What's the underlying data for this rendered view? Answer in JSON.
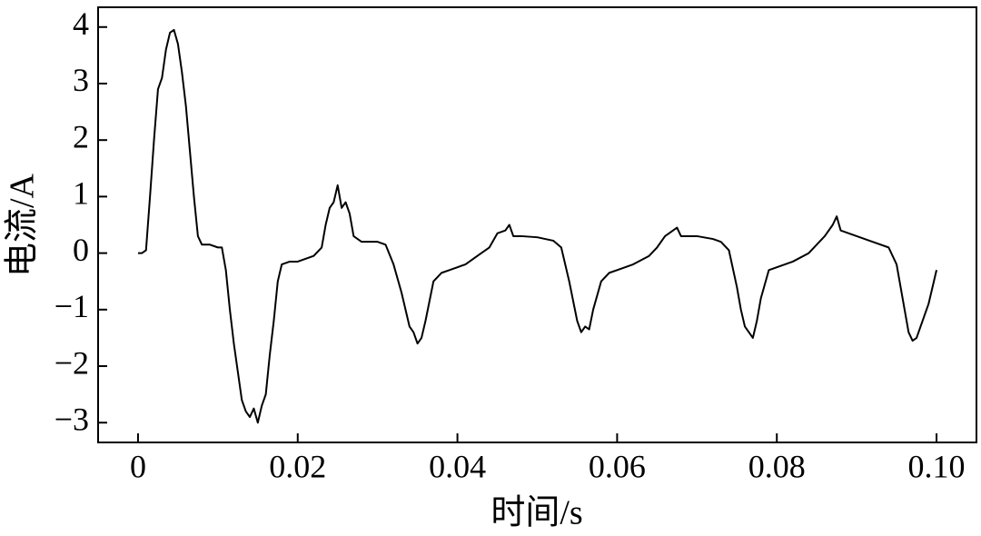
{
  "chart_data": {
    "type": "line",
    "xlabel": "时间/s",
    "ylabel": "电流/A",
    "xlim": [
      -0.005,
      0.105
    ],
    "ylim": [
      -3.35,
      4.35
    ],
    "xticks": [
      0,
      0.02,
      0.04,
      0.06,
      0.08,
      {
        "value": 0.1,
        "label": "0.10"
      }
    ],
    "yticks": [
      {
        "value": -3,
        "label": "−3"
      },
      {
        "value": -2,
        "label": "−2"
      },
      {
        "value": -1,
        "label": "−1"
      },
      0,
      1,
      2,
      3,
      4
    ],
    "series": [
      {
        "color": "#000000",
        "x": [
          0,
          0.0005,
          0.001,
          0.0015,
          0.002,
          0.0025,
          0.003,
          0.0035,
          0.004,
          0.0045,
          0.005,
          0.0055,
          0.006,
          0.0065,
          0.007,
          0.0075,
          0.008,
          0.009,
          0.01,
          0.0105,
          0.011,
          0.0115,
          0.012,
          0.0125,
          0.013,
          0.0135,
          0.014,
          0.0145,
          0.015,
          0.0155,
          0.016,
          0.0165,
          0.017,
          0.0175,
          0.018,
          0.019,
          0.02,
          0.021,
          0.022,
          0.023,
          0.0235,
          0.024,
          0.0245,
          0.025,
          0.0255,
          0.026,
          0.0265,
          0.027,
          0.028,
          0.029,
          0.03,
          0.031,
          0.032,
          0.033,
          0.034,
          0.0345,
          0.035,
          0.0355,
          0.036,
          0.037,
          0.038,
          0.039,
          0.04,
          0.041,
          0.042,
          0.043,
          0.044,
          0.045,
          0.046,
          0.0465,
          0.047,
          0.048,
          0.05,
          0.052,
          0.053,
          0.054,
          0.055,
          0.0555,
          0.056,
          0.0565,
          0.057,
          0.058,
          0.059,
          0.06,
          0.062,
          0.064,
          0.065,
          0.066,
          0.067,
          0.0675,
          0.068,
          0.07,
          0.072,
          0.073,
          0.074,
          0.075,
          0.0755,
          0.076,
          0.0765,
          0.077,
          0.0775,
          0.078,
          0.079,
          0.08,
          0.082,
          0.084,
          0.086,
          0.087,
          0.0875,
          0.088,
          0.09,
          0.092,
          0.094,
          0.095,
          0.096,
          0.0965,
          0.097,
          0.0975,
          0.098,
          0.099,
          0.1
        ],
        "values": [
          0,
          0,
          0.05,
          1.0,
          2.0,
          2.9,
          3.1,
          3.6,
          3.9,
          3.95,
          3.7,
          3.2,
          2.6,
          1.8,
          1.0,
          0.3,
          0.15,
          0.15,
          0.1,
          0.1,
          -0.3,
          -1.0,
          -1.6,
          -2.1,
          -2.6,
          -2.8,
          -2.9,
          -2.75,
          -3.0,
          -2.7,
          -2.5,
          -1.8,
          -1.2,
          -0.5,
          -0.2,
          -0.15,
          -0.15,
          -0.1,
          -0.05,
          0.1,
          0.5,
          0.8,
          0.9,
          1.2,
          0.8,
          0.9,
          0.7,
          0.3,
          0.2,
          0.2,
          0.2,
          0.15,
          -0.2,
          -0.7,
          -1.3,
          -1.4,
          -1.6,
          -1.5,
          -1.2,
          -0.5,
          -0.35,
          -0.3,
          -0.25,
          -0.2,
          -0.1,
          0,
          0.1,
          0.35,
          0.4,
          0.5,
          0.3,
          0.3,
          0.28,
          0.22,
          0.1,
          -0.5,
          -1.2,
          -1.4,
          -1.3,
          -1.35,
          -1.0,
          -0.5,
          -0.35,
          -0.3,
          -0.2,
          -0.05,
          0.1,
          0.3,
          0.4,
          0.45,
          0.3,
          0.3,
          0.25,
          0.2,
          0.05,
          -0.6,
          -1.0,
          -1.3,
          -1.4,
          -1.5,
          -1.2,
          -0.8,
          -0.3,
          -0.25,
          -0.15,
          0,
          0.3,
          0.5,
          0.65,
          0.4,
          0.3,
          0.2,
          0.1,
          -0.2,
          -1.0,
          -1.4,
          -1.55,
          -1.5,
          -1.3,
          -0.9,
          -0.3
        ]
      }
    ]
  }
}
